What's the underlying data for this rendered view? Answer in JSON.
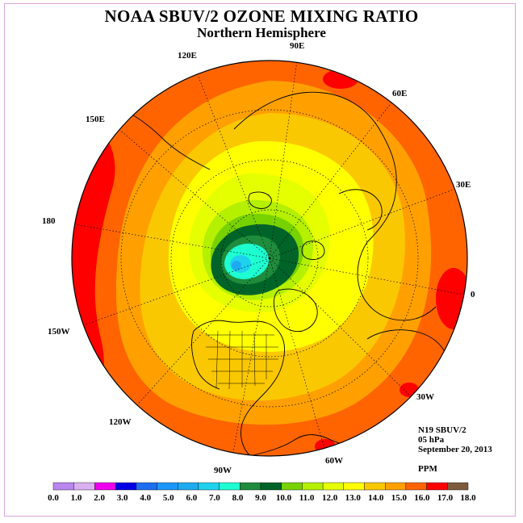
{
  "title": "NOAA SBUV/2 OZONE MIXING RATIO",
  "subtitle": "Northern Hemisphere",
  "longitude_labels": [
    "90E",
    "60E",
    "30E",
    "0",
    "30W",
    "60W",
    "90W",
    "120W",
    "150W",
    "180",
    "150E",
    "120E"
  ],
  "info": {
    "instrument": "N19 SBUV/2",
    "level": "05 hPa",
    "date": "September 20, 2013"
  },
  "units": "PPM",
  "colorbar": {
    "ticks": [
      "0.0",
      "1.0",
      "2.0",
      "3.0",
      "4.0",
      "5.0",
      "6.0",
      "7.0",
      "8.0",
      "9.0",
      "10.0",
      "11.0",
      "12.0",
      "13.0",
      "14.0",
      "15.0",
      "16.0",
      "17.0",
      "18.0"
    ],
    "colors": [
      "#b986f0",
      "#d9b0f0",
      "#ee00ee",
      "#0000e6",
      "#1e6ef0",
      "#1e96ff",
      "#1eaaf0",
      "#1ed2ee",
      "#1effd2",
      "#1e8c3c",
      "#006428",
      "#78d200",
      "#b4f000",
      "#e6ff00",
      "#ffff00",
      "#fac800",
      "#ffa000",
      "#ff6400",
      "#ff0000",
      "#7d5a3c"
    ]
  },
  "map": {
    "projection": "north-polar-stereographic",
    "ocean_color": "#ffa000",
    "continent_lines": "#000000"
  }
}
